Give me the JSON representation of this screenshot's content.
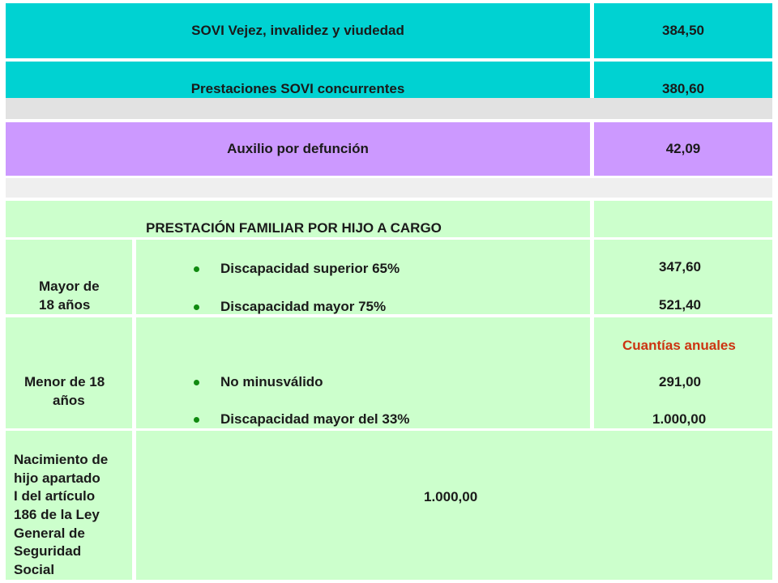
{
  "rows": {
    "sovi_vejez": {
      "label": "SOVI Vejez, invalidez y viudedad",
      "value": "384,50"
    },
    "sovi_concurrentes": {
      "label": "Prestaciones SOVI concurrentes",
      "value": "380,60"
    },
    "auxilio": {
      "label": "Auxilio por defunción",
      "value": "42,09"
    }
  },
  "familiar": {
    "heading": "PRESTACIÓN FAMILIAR POR HIJO A CARGO",
    "mayor": {
      "label_line1": "Mayor de",
      "label_line2": "18 años",
      "items": [
        {
          "text": "Discapacidad  superior 65%",
          "value": "347,60"
        },
        {
          "text": "Discapacidad  mayor 75%",
          "value": "521,40"
        }
      ]
    },
    "menor": {
      "label_line1": "Menor de 18",
      "label_line2": "años",
      "note": "Cuantías anuales",
      "items": [
        {
          "text": "No minusválido",
          "value": "291,00"
        },
        {
          "text": "Discapacidad mayor del 33%",
          "value": "1.000,00"
        }
      ]
    },
    "nacimiento": {
      "label_lines": [
        "Nacimiento de",
        "hijo apartado",
        " I del artículo",
        "186 de la Ley",
        "General de",
        "Seguridad",
        "Social"
      ],
      "value": "1.000,00"
    }
  },
  "colors": {
    "teal": "#00d2d2",
    "violet": "#cc99ff",
    "green": "#ccffcc",
    "note_red": "#cc3311",
    "bullet_green": "#108a10"
  }
}
